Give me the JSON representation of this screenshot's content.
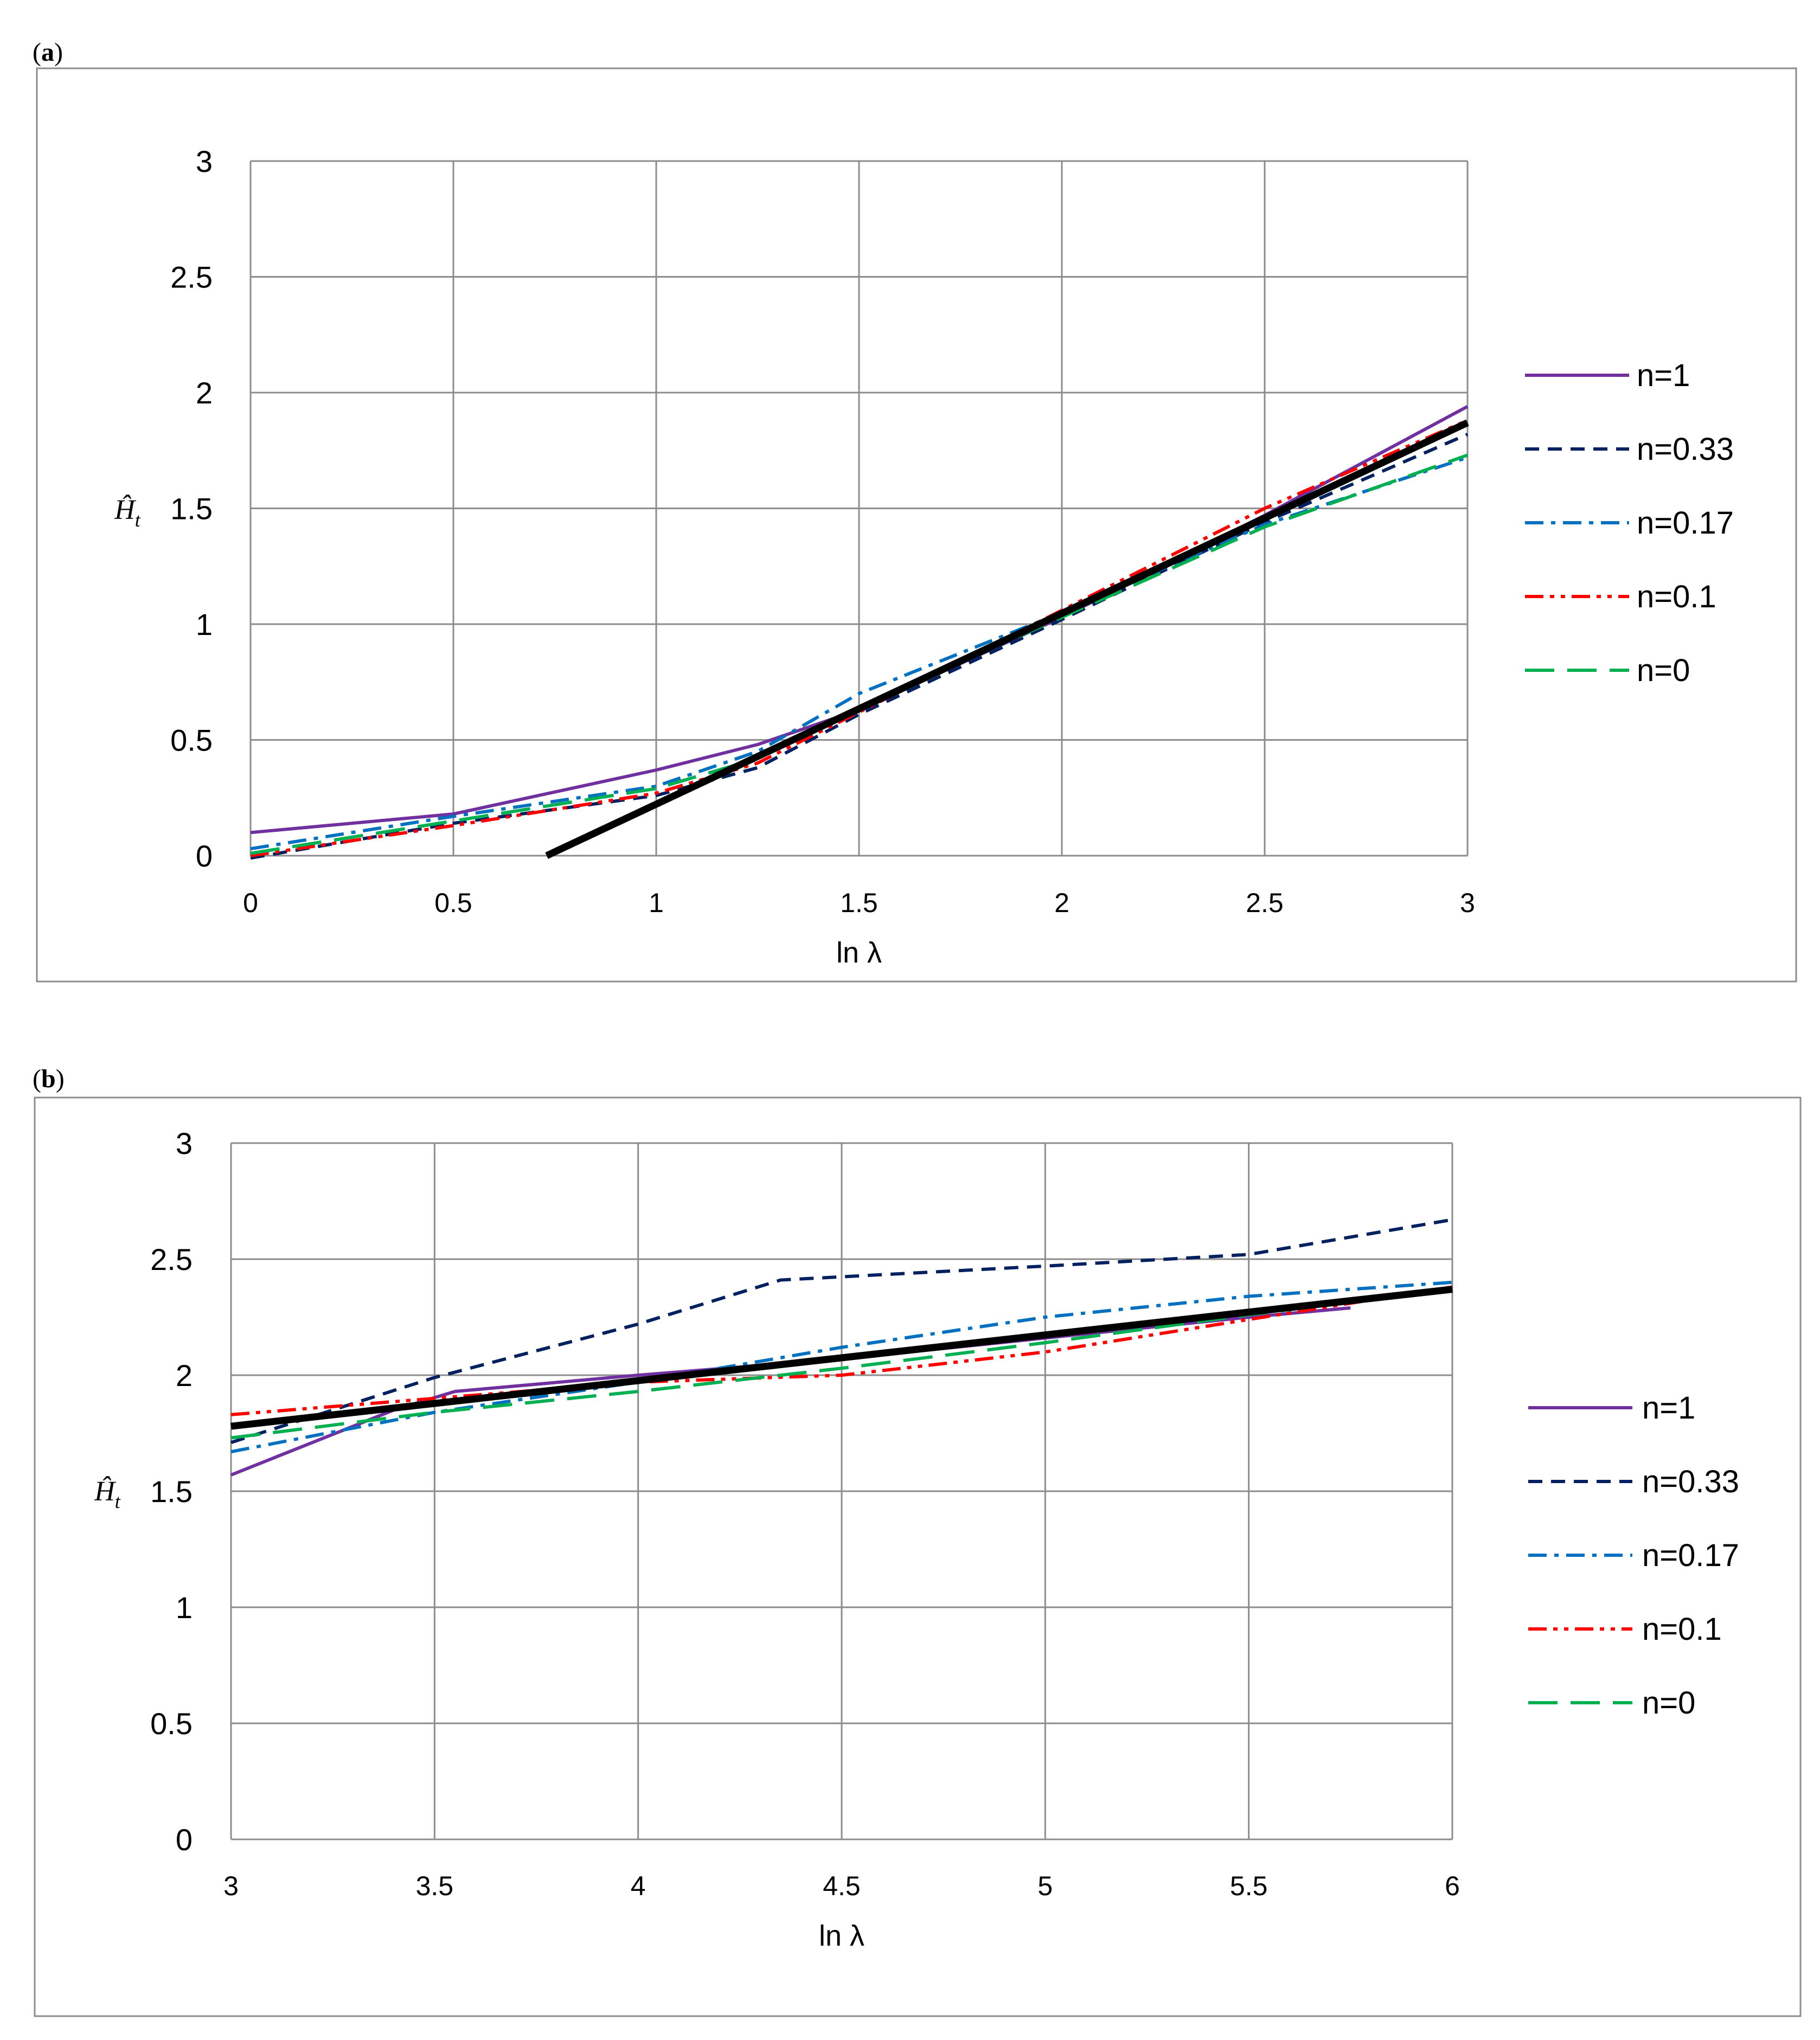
{
  "chart_data": [
    {
      "type": "line",
      "panel_label": "a",
      "xlabel": "ln λ",
      "ylabel": "Ĥ",
      "ylabel_sub": "t",
      "xlim": [
        0,
        3
      ],
      "ylim": [
        0,
        3
      ],
      "xticks": [
        "0",
        "0.5",
        "1",
        "1.5",
        "2",
        "2.5",
        "3"
      ],
      "yticks": [
        "0",
        "0.5",
        "1",
        "1.5",
        "2",
        "2.5",
        "3"
      ],
      "legend_position": "right",
      "series": [
        {
          "name": "n=1",
          "color": "#7030A0",
          "dash": "solid",
          "points": [
            [
              0,
              0.1
            ],
            [
              0.5,
              0.18
            ],
            [
              1.0,
              0.37
            ],
            [
              1.25,
              0.48
            ],
            [
              1.5,
              0.63
            ],
            [
              2.0,
              1.03
            ],
            [
              2.5,
              1.47
            ],
            [
              3.0,
              1.94
            ]
          ]
        },
        {
          "name": "n=0.33",
          "color": "#002060",
          "dash": "dash",
          "points": [
            [
              0,
              -0.01
            ],
            [
              0.5,
              0.14
            ],
            [
              1.0,
              0.26
            ],
            [
              1.25,
              0.38
            ],
            [
              1.5,
              0.61
            ],
            [
              2.0,
              1.02
            ],
            [
              2.5,
              1.44
            ],
            [
              3.0,
              1.82
            ]
          ]
        },
        {
          "name": "n=0.17",
          "color": "#0070C0",
          "dash": "dashdot",
          "points": [
            [
              0,
              0.03
            ],
            [
              0.5,
              0.17
            ],
            [
              1.0,
              0.3
            ],
            [
              1.25,
              0.45
            ],
            [
              1.5,
              0.7
            ],
            [
              2.0,
              1.05
            ],
            [
              2.5,
              1.43
            ],
            [
              3.0,
              1.72
            ]
          ]
        },
        {
          "name": "n=0.1",
          "color": "#FF0000",
          "dash": "dashdotdot",
          "points": [
            [
              0,
              0.0
            ],
            [
              0.5,
              0.13
            ],
            [
              1.0,
              0.27
            ],
            [
              1.25,
              0.4
            ],
            [
              1.5,
              0.62
            ],
            [
              2.0,
              1.06
            ],
            [
              2.5,
              1.5
            ],
            [
              3.0,
              1.88
            ]
          ]
        },
        {
          "name": "n=0",
          "color": "#00B050",
          "dash": "longdash",
          "points": [
            [
              0,
              0.01
            ],
            [
              0.5,
              0.15
            ],
            [
              1.0,
              0.29
            ],
            [
              1.25,
              0.42
            ],
            [
              1.5,
              0.64
            ],
            [
              2.0,
              1.03
            ],
            [
              2.5,
              1.42
            ],
            [
              3.0,
              1.73
            ]
          ]
        },
        {
          "name": "",
          "color": "#000000",
          "dash": "solid",
          "thick": true,
          "points": [
            [
              0.73,
              0.0
            ],
            [
              3.0,
              1.87
            ]
          ]
        }
      ]
    },
    {
      "type": "line",
      "panel_label": "b",
      "xlabel": "ln λ",
      "ylabel": "Ĥ",
      "ylabel_sub": "t",
      "xlim": [
        3,
        6
      ],
      "ylim": [
        0,
        3
      ],
      "xticks": [
        "3",
        "3.5",
        "4",
        "4.5",
        "5",
        "5.5",
        "6"
      ],
      "yticks": [
        "0",
        "0.5",
        "1",
        "1.5",
        "2",
        "2.5",
        "3"
      ],
      "legend_position": "right",
      "series": [
        {
          "name": "n=1",
          "color": "#7030A0",
          "dash": "solid",
          "points": [
            [
              3.0,
              1.57
            ],
            [
              3.4,
              1.85
            ],
            [
              3.55,
              1.93
            ],
            [
              4.0,
              2.0
            ],
            [
              4.5,
              2.07
            ],
            [
              5.0,
              2.16
            ],
            [
              5.5,
              2.25
            ],
            [
              5.75,
              2.29
            ]
          ]
        },
        {
          "name": "n=0.33",
          "color": "#002060",
          "dash": "dash",
          "points": [
            [
              3.0,
              1.71
            ],
            [
              3.5,
              1.99
            ],
            [
              4.0,
              2.22
            ],
            [
              4.35,
              2.41
            ],
            [
              5.0,
              2.47
            ],
            [
              5.5,
              2.52
            ],
            [
              6.0,
              2.67
            ]
          ]
        },
        {
          "name": "n=0.17",
          "color": "#0070C0",
          "dash": "dashdot",
          "points": [
            [
              3.0,
              1.67
            ],
            [
              3.5,
              1.84
            ],
            [
              4.0,
              1.97
            ],
            [
              4.5,
              2.12
            ],
            [
              5.0,
              2.25
            ],
            [
              5.5,
              2.34
            ],
            [
              6.0,
              2.4
            ]
          ]
        },
        {
          "name": "n=0.1",
          "color": "#FF0000",
          "dash": "dashdotdot",
          "points": [
            [
              3.0,
              1.83
            ],
            [
              3.5,
              1.9
            ],
            [
              4.0,
              1.97
            ],
            [
              4.5,
              2.0
            ],
            [
              5.0,
              2.1
            ],
            [
              5.5,
              2.24
            ],
            [
              6.0,
              2.38
            ]
          ]
        },
        {
          "name": "n=0",
          "color": "#00B050",
          "dash": "longdash",
          "points": [
            [
              3.0,
              1.73
            ],
            [
              3.5,
              1.84
            ],
            [
              4.0,
              1.93
            ],
            [
              4.5,
              2.03
            ],
            [
              5.0,
              2.14
            ],
            [
              5.5,
              2.26
            ],
            [
              6.0,
              2.37
            ]
          ]
        },
        {
          "name": "",
          "color": "#000000",
          "dash": "solid",
          "thick": true,
          "points": [
            [
              3.0,
              1.78
            ],
            [
              6.0,
              2.37
            ]
          ]
        }
      ]
    }
  ]
}
